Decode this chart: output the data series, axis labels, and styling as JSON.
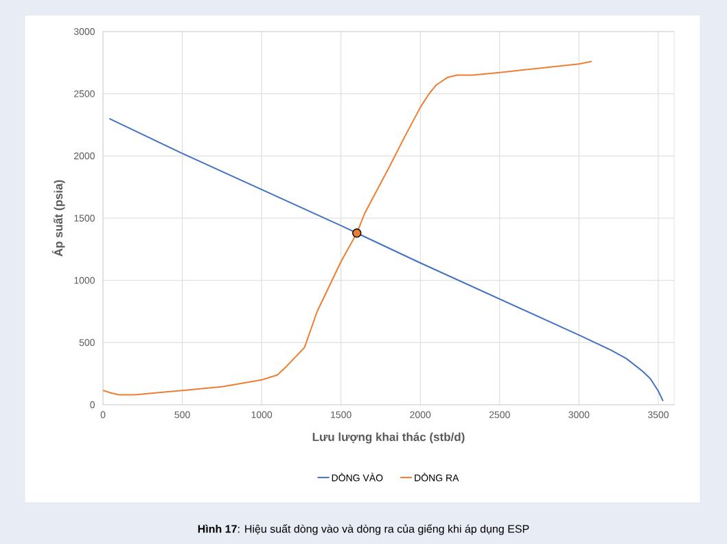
{
  "chart_data": {
    "type": "line",
    "xlabel": "Lưu lượng khai thác (stb/d)",
    "ylabel": "Áp suất (psia)",
    "annotations": [
      "**Hình 17**: Hiệu suất dòng vào và dòng ra của giếng khi áp dụng ESP"
    ],
    "xlim": [
      0,
      3600
    ],
    "xticks": [
      0,
      500,
      1000,
      1500,
      2000,
      2500,
      3000,
      3500
    ],
    "ylim": [
      0,
      3000
    ],
    "yticks": [
      0,
      500,
      1000,
      1500,
      2000,
      2500,
      3000
    ],
    "grid": true,
    "legend": "bottom",
    "marker": "none",
    "line_style": "solid",
    "series": [
      {
        "name": "DÒNG VÀO",
        "color": "#4472c4",
        "x": [
          40,
          500,
          1000,
          1500,
          1600,
          2000,
          2500,
          3000,
          3200,
          3300,
          3400,
          3450,
          3500,
          3530
        ],
        "values": [
          2300,
          2020,
          1730,
          1440,
          1380,
          1140,
          850,
          560,
          440,
          370,
          270,
          210,
          110,
          30
        ]
      },
      {
        "name": "DÒNG RA",
        "color": "#ed7d31",
        "x": [
          0,
          50,
          100,
          200,
          500,
          750,
          1000,
          1100,
          1150,
          1270,
          1350,
          1500,
          1600,
          1650,
          1800,
          1900,
          2000,
          2050,
          2100,
          2170,
          2230,
          2330,
          2500,
          3000,
          3080
        ],
        "values": [
          115,
          95,
          80,
          80,
          115,
          145,
          200,
          240,
          300,
          460,
          750,
          1150,
          1380,
          1540,
          1900,
          2150,
          2390,
          2490,
          2570,
          2630,
          2650,
          2650,
          2670,
          2740,
          2760
        ]
      },
      {
        "type": "scatter",
        "marker": "circle",
        "color": "#ed7d31",
        "x": [
          1600
        ],
        "values": [
          1380
        ]
      }
    ]
  }
}
